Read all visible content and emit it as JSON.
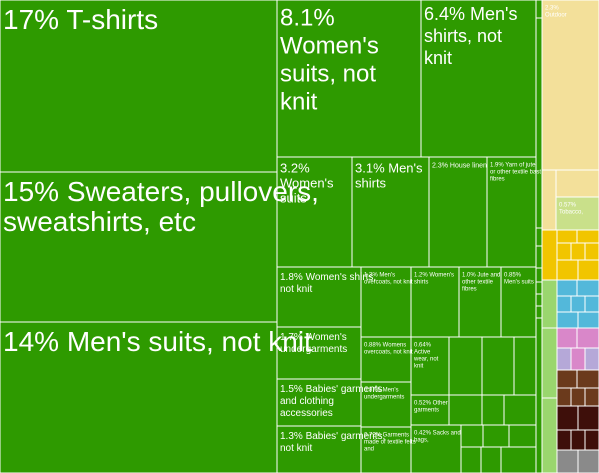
{
  "chart_data": {
    "type": "treemap",
    "value_unit": "%",
    "colors": {
      "textiles": "#2e9a00",
      "textiles_light": "#9ad66e",
      "other_1": "#f3e09a",
      "other_2": "#c9e08a",
      "other_3": "#f1c500",
      "other_4": "#53b8da",
      "other_5": "#d987c9",
      "other_6": "#b5a8d8",
      "other_7": "#6b3a1c",
      "other_8": "#3e0f0a",
      "other_9": "#8a8a8a",
      "border": "#ffffff"
    },
    "tiles": [
      {
        "label": "17% T-shirts",
        "value": 17,
        "group": "textiles"
      },
      {
        "label": "15% Sweaters, pullovers, sweatshirts, etc",
        "value": 15,
        "group": "textiles"
      },
      {
        "label": "14% Men's suits, not knit",
        "value": 14,
        "group": "textiles"
      },
      {
        "label": "8.1% Women's suits, not knit",
        "value": 8.1,
        "group": "textiles"
      },
      {
        "label": "6.4% Men's shirts, not knit",
        "value": 6.4,
        "group": "textiles"
      },
      {
        "label": "3.2% Women's suits",
        "value": 3.2,
        "group": "textiles"
      },
      {
        "label": "3.1% Men's shirts",
        "value": 3.1,
        "group": "textiles"
      },
      {
        "label": "2.3% House linen",
        "value": 2.3,
        "group": "textiles"
      },
      {
        "label": "1.9% Yarn of jute or other textile bast fibres",
        "value": 1.9,
        "group": "textiles"
      },
      {
        "label": "1.8% Women's shirts, not knit",
        "value": 1.8,
        "group": "textiles"
      },
      {
        "label": "1.3% Men's overcoats, not knit",
        "value": 1.3,
        "group": "textiles"
      },
      {
        "label": "1.2% Women's shirts",
        "value": 1.2,
        "group": "textiles"
      },
      {
        "label": "1.0% Jute and other textile fibres",
        "value": 1.0,
        "group": "textiles"
      },
      {
        "label": "0.85% Men's suits",
        "value": 0.85,
        "group": "textiles"
      },
      {
        "label": "1.7% Women's undergarments",
        "value": 1.7,
        "group": "textiles"
      },
      {
        "label": "0.88% Womens overcoats, not knit",
        "value": 0.88,
        "group": "textiles"
      },
      {
        "label": "0.64% Active wear, not knit",
        "value": 0.64,
        "group": "textiles"
      },
      {
        "label": "1.5% Babies' garments and clothing accessories",
        "value": 1.5,
        "group": "textiles"
      },
      {
        "label": "0.87% Men's undergarments",
        "value": 0.87,
        "group": "textiles"
      },
      {
        "label": "0.52% Other garments",
        "value": 0.52,
        "group": "textiles"
      },
      {
        "label": "1.3% Babies' garments, not knit",
        "value": 1.3,
        "group": "textiles"
      },
      {
        "label": "0.72% Garments made of textile felts and",
        "value": 0.72,
        "group": "textiles"
      },
      {
        "label": "0.42% Sacks and bags,",
        "value": 0.42,
        "group": "textiles"
      },
      {
        "label": "2.3% Outdoor",
        "value": 2.3,
        "group": "other_1"
      },
      {
        "label": "0.57% Tobacco,",
        "value": 0.57,
        "group": "other_2"
      }
    ]
  }
}
